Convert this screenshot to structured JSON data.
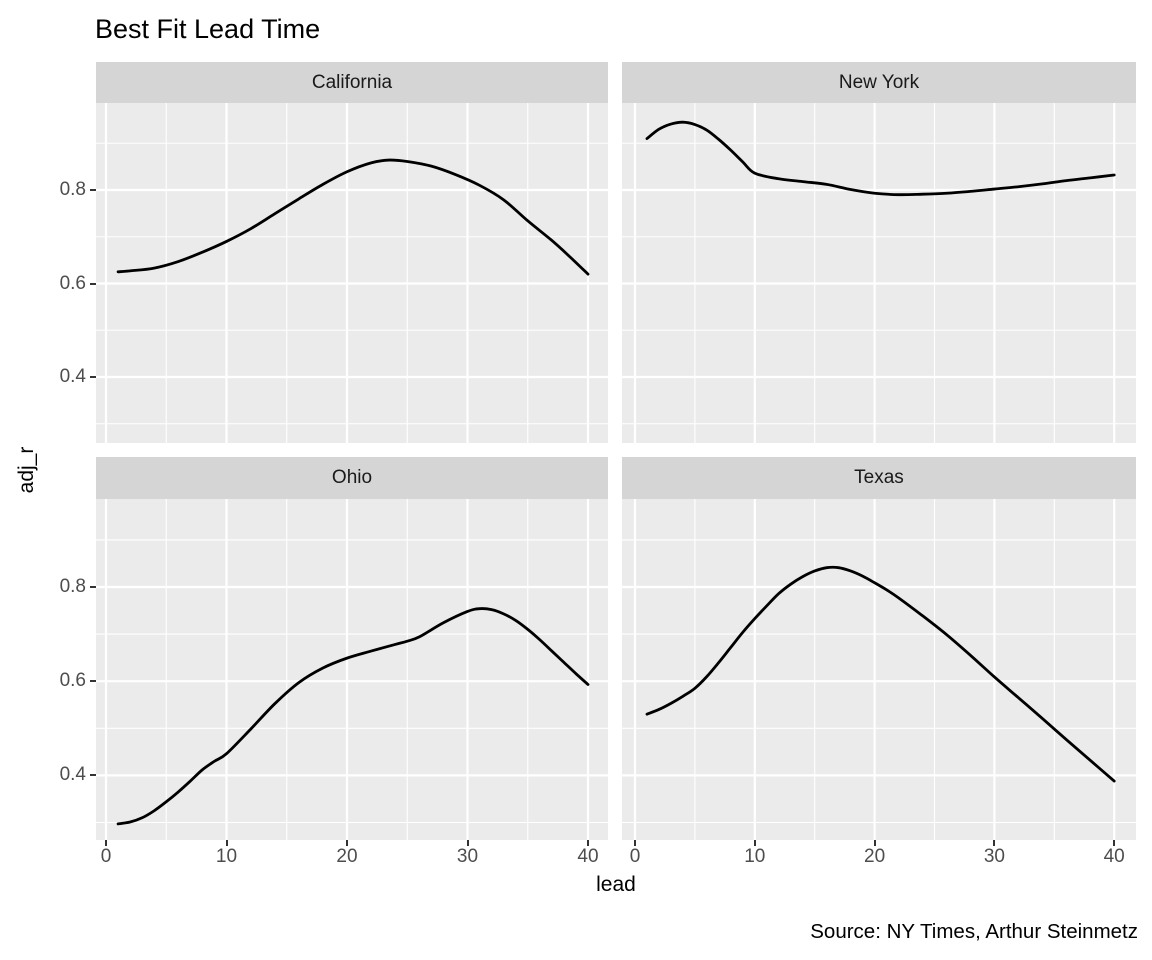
{
  "title": "Best Fit Lead Time",
  "source_note": "Source: NY Times, Arthur Steinmetz",
  "axes": {
    "x_label": "lead",
    "y_label": "adj_r",
    "x_tick_labels": [
      "0",
      "10",
      "20",
      "30",
      "40"
    ],
    "y_tick_labels": [
      "0.8",
      "0.6",
      "0.4"
    ]
  },
  "chart_data": {
    "type": "line",
    "title": "Best Fit Lead Time",
    "xlabel": "lead",
    "ylabel": "adj_r",
    "x_ticks": [
      0,
      10,
      20,
      30,
      40
    ],
    "x_minor": [
      5,
      15,
      25,
      35
    ],
    "y_ticks": [
      0.8,
      0.6,
      0.4
    ],
    "y_minor": [
      0.9,
      0.7,
      0.5,
      0.3
    ],
    "xlim": [
      -1,
      42
    ],
    "ylim": [
      0.26,
      0.99
    ],
    "grid": true,
    "legend_position": "none",
    "line_color": "#000000",
    "panel_bg": "#EBEBEB",
    "strip_bg": "#D5D5D5",
    "grid_color": "#FFFFFF",
    "facets": [
      {
        "label": "California",
        "x": [
          1,
          2,
          4,
          6,
          8,
          10,
          12,
          14,
          16,
          18,
          20,
          22,
          23.5,
          25,
          27,
          29,
          31,
          33,
          35,
          37,
          38.5,
          40
        ],
        "y": [
          0.625,
          0.627,
          0.633,
          0.647,
          0.667,
          0.69,
          0.717,
          0.749,
          0.781,
          0.812,
          0.839,
          0.858,
          0.864,
          0.861,
          0.851,
          0.833,
          0.81,
          0.779,
          0.734,
          0.692,
          0.657,
          0.62
        ]
      },
      {
        "label": "New York",
        "x": [
          1,
          2,
          3,
          4,
          5,
          6,
          7,
          8,
          9,
          10,
          12,
          14,
          16,
          18,
          20,
          22,
          24,
          26,
          28,
          30,
          32,
          34,
          36,
          38,
          40
        ],
        "y": [
          0.91,
          0.93,
          0.941,
          0.945,
          0.94,
          0.928,
          0.908,
          0.885,
          0.86,
          0.836,
          0.824,
          0.818,
          0.812,
          0.801,
          0.793,
          0.79,
          0.791,
          0.793,
          0.797,
          0.802,
          0.807,
          0.813,
          0.82,
          0.826,
          0.832
        ]
      },
      {
        "label": "Ohio",
        "x": [
          1,
          2,
          3,
          4,
          5,
          6,
          7,
          8,
          9,
          10,
          12,
          14,
          16,
          18,
          20,
          22,
          24,
          25,
          26,
          28,
          30,
          31,
          32,
          33,
          34,
          35,
          36,
          37,
          38,
          39,
          40
        ],
        "y": [
          0.297,
          0.301,
          0.31,
          0.325,
          0.344,
          0.365,
          0.388,
          0.412,
          0.43,
          0.446,
          0.498,
          0.552,
          0.597,
          0.628,
          0.649,
          0.664,
          0.678,
          0.685,
          0.694,
          0.724,
          0.748,
          0.754,
          0.752,
          0.743,
          0.729,
          0.71,
          0.688,
          0.664,
          0.64,
          0.616,
          0.593
        ]
      },
      {
        "label": "Texas",
        "x": [
          1,
          2,
          3,
          4,
          5,
          6,
          7,
          8,
          9,
          10,
          11,
          12,
          13,
          14,
          15,
          16,
          17,
          18,
          19,
          20,
          21,
          22,
          24,
          26,
          28,
          30,
          32,
          34,
          36,
          38,
          40
        ],
        "y": [
          0.53,
          0.54,
          0.553,
          0.568,
          0.585,
          0.61,
          0.64,
          0.672,
          0.704,
          0.733,
          0.76,
          0.786,
          0.806,
          0.822,
          0.834,
          0.841,
          0.841,
          0.834,
          0.823,
          0.809,
          0.794,
          0.777,
          0.739,
          0.699,
          0.655,
          0.609,
          0.565,
          0.521,
          0.476,
          0.432,
          0.388
        ]
      }
    ]
  }
}
